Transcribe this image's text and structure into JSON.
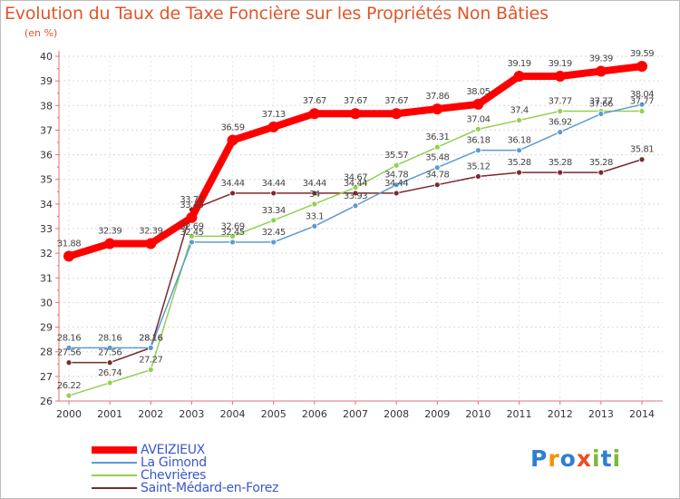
{
  "chart_data": {
    "type": "line",
    "title": "Evolution du Taux de Taxe Foncière sur les Propriétés Non Bâties",
    "ylabel": "(en %)",
    "xlabel": "",
    "ylim": [
      26,
      40
    ],
    "yticks": [
      26,
      27,
      28,
      29,
      30,
      31,
      32,
      33,
      34,
      35,
      36,
      37,
      38,
      39,
      40
    ],
    "x": [
      "2000",
      "2001",
      "2002",
      "2003",
      "2004",
      "2005",
      "2006",
      "2007",
      "2008",
      "2009",
      "2010",
      "2011",
      "2012",
      "2013",
      "2014"
    ],
    "grid": "horizontal dashed",
    "legend_position": "bottom-left",
    "series": [
      {
        "name": "AVEIZIEUX",
        "color": "#ff0000",
        "values": [
          31.88,
          32.39,
          32.39,
          33.45,
          36.59,
          37.13,
          37.67,
          37.67,
          37.67,
          37.86,
          38.05,
          39.19,
          39.19,
          39.39,
          39.59
        ],
        "labels": [
          "31.88",
          "32.39",
          "32.39",
          "33.45",
          "36.59",
          "37.13",
          "37.67",
          "37.67",
          "37.67",
          "37.86",
          "38.05",
          "39.19",
          "39.19",
          "39.39",
          "39.59"
        ]
      },
      {
        "name": "La Gimond",
        "color": "#5b9bd5",
        "values": [
          28.16,
          28.16,
          28.16,
          32.45,
          32.45,
          32.45,
          33.1,
          33.93,
          34.78,
          35.48,
          36.18,
          36.18,
          36.92,
          37.66,
          38.04
        ],
        "labels": [
          "28.16",
          "28.16",
          "28.16",
          "32.45",
          "32.45",
          "32.45",
          "33.1",
          "33.93",
          "34.78",
          "35.48",
          "36.18",
          "36.18",
          "36.92",
          "37.66",
          "38.04"
        ]
      },
      {
        "name": "Chevrières",
        "color": "#92d050",
        "values": [
          26.22,
          26.74,
          27.27,
          32.69,
          32.69,
          33.34,
          34.0,
          34.67,
          35.57,
          36.31,
          37.04,
          37.4,
          37.77,
          37.77,
          37.77
        ],
        "labels": [
          "26.22",
          "26.74",
          "27.27",
          "32.69",
          "32.69",
          "33.34",
          "34",
          "34.67",
          "35.57",
          "36.31",
          "37.04",
          "37.4",
          "37.77",
          "37.77",
          "37.77"
        ]
      },
      {
        "name": "Saint-Médard-en-Forez",
        "color": "#7b2a2a",
        "values": [
          27.56,
          27.56,
          28.16,
          33.77,
          34.44,
          34.44,
          34.44,
          34.44,
          34.44,
          34.78,
          35.12,
          35.28,
          35.28,
          35.28,
          35.81
        ],
        "labels": [
          "27.56",
          "27.56",
          "28.16",
          "33.77",
          "34.44",
          "34.44",
          "34.44",
          "34.44",
          "34.44",
          "34.78",
          "35.12",
          "35.28",
          "35.28",
          "35.28",
          "35.81"
        ]
      }
    ]
  },
  "logo": {
    "letters": [
      "P",
      "r",
      "o",
      "x",
      "i",
      "t",
      "i"
    ],
    "colors": [
      "#2e7fd1",
      "#f39200",
      "#2e7fd1",
      "#e8501f",
      "#7db93a",
      "#2e7fd1",
      "#7db93a"
    ]
  }
}
